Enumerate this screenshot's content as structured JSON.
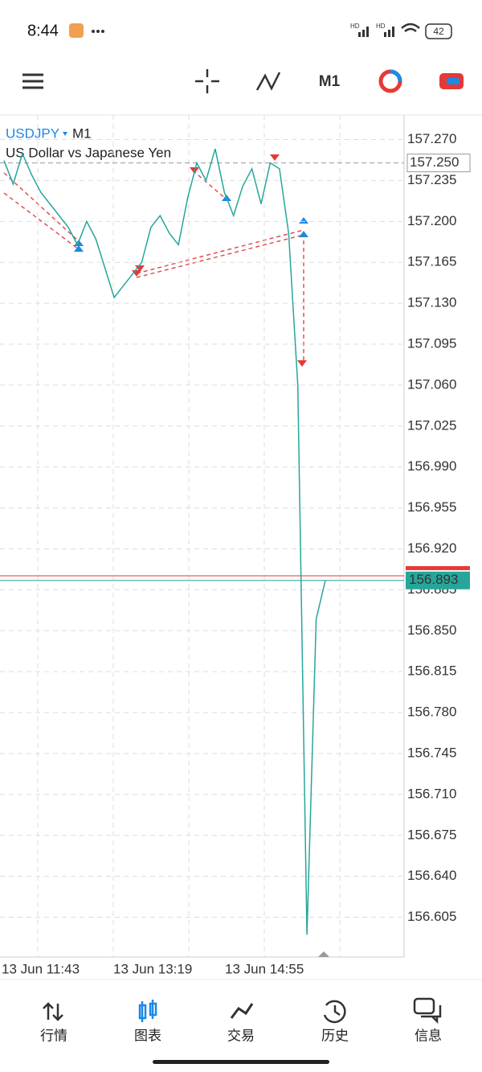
{
  "status_bar": {
    "time": "8:44",
    "network": [
      "HD",
      "HD"
    ],
    "battery": "42"
  },
  "toolbar": {
    "timeframe": "M1"
  },
  "chart": {
    "type": "line",
    "symbol": "USDJPY",
    "timeframe": "M1",
    "description": "US Dollar vs Japanese Yen",
    "ylim": [
      156.571,
      157.291
    ],
    "yticks": [
      {
        "value": 157.27,
        "label": "157.270"
      },
      157.235,
      {
        "value": 157.2,
        "label": "157.200"
      },
      157.165,
      {
        "value": 157.13,
        "label": "157.130"
      },
      157.095,
      {
        "value": 157.06,
        "label": "157.060"
      },
      157.025,
      {
        "value": 156.99,
        "label": "156.990"
      },
      156.955,
      {
        "value": 156.92,
        "label": "156.920"
      },
      156.885,
      {
        "value": 156.85,
        "label": "156.850"
      },
      156.815,
      {
        "value": 156.78,
        "label": "156.780"
      },
      156.745,
      {
        "value": 156.71,
        "label": "156.710"
      },
      156.675,
      {
        "value": 156.64,
        "label": "156.640"
      },
      156.605
    ],
    "xticks": [
      "13 Jun 11:43",
      "13 Jun 13:19",
      "13 Jun 14:55"
    ],
    "values": [
      157.252,
      157.232,
      157.258,
      157.24,
      157.225,
      157.215,
      157.205,
      157.195,
      157.18,
      157.2,
      157.185,
      157.16,
      157.135,
      157.145,
      157.155,
      157.165,
      157.195,
      157.205,
      157.19,
      157.18,
      157.22,
      157.25,
      157.235,
      157.262,
      157.225,
      157.205,
      157.23,
      157.245,
      157.215,
      157.25,
      157.245,
      157.19,
      157.06,
      156.59,
      156.86,
      156.893
    ],
    "color": "#26a69a",
    "marker": {
      "value": 157.25,
      "label": "157.250"
    },
    "ask": 156.897,
    "bid": 156.893,
    "grid": true
  },
  "nav": [
    {
      "label": "行情"
    },
    {
      "label": "图表",
      "active": true
    },
    {
      "label": "交易"
    },
    {
      "label": "历史"
    },
    {
      "label": "信息"
    }
  ]
}
